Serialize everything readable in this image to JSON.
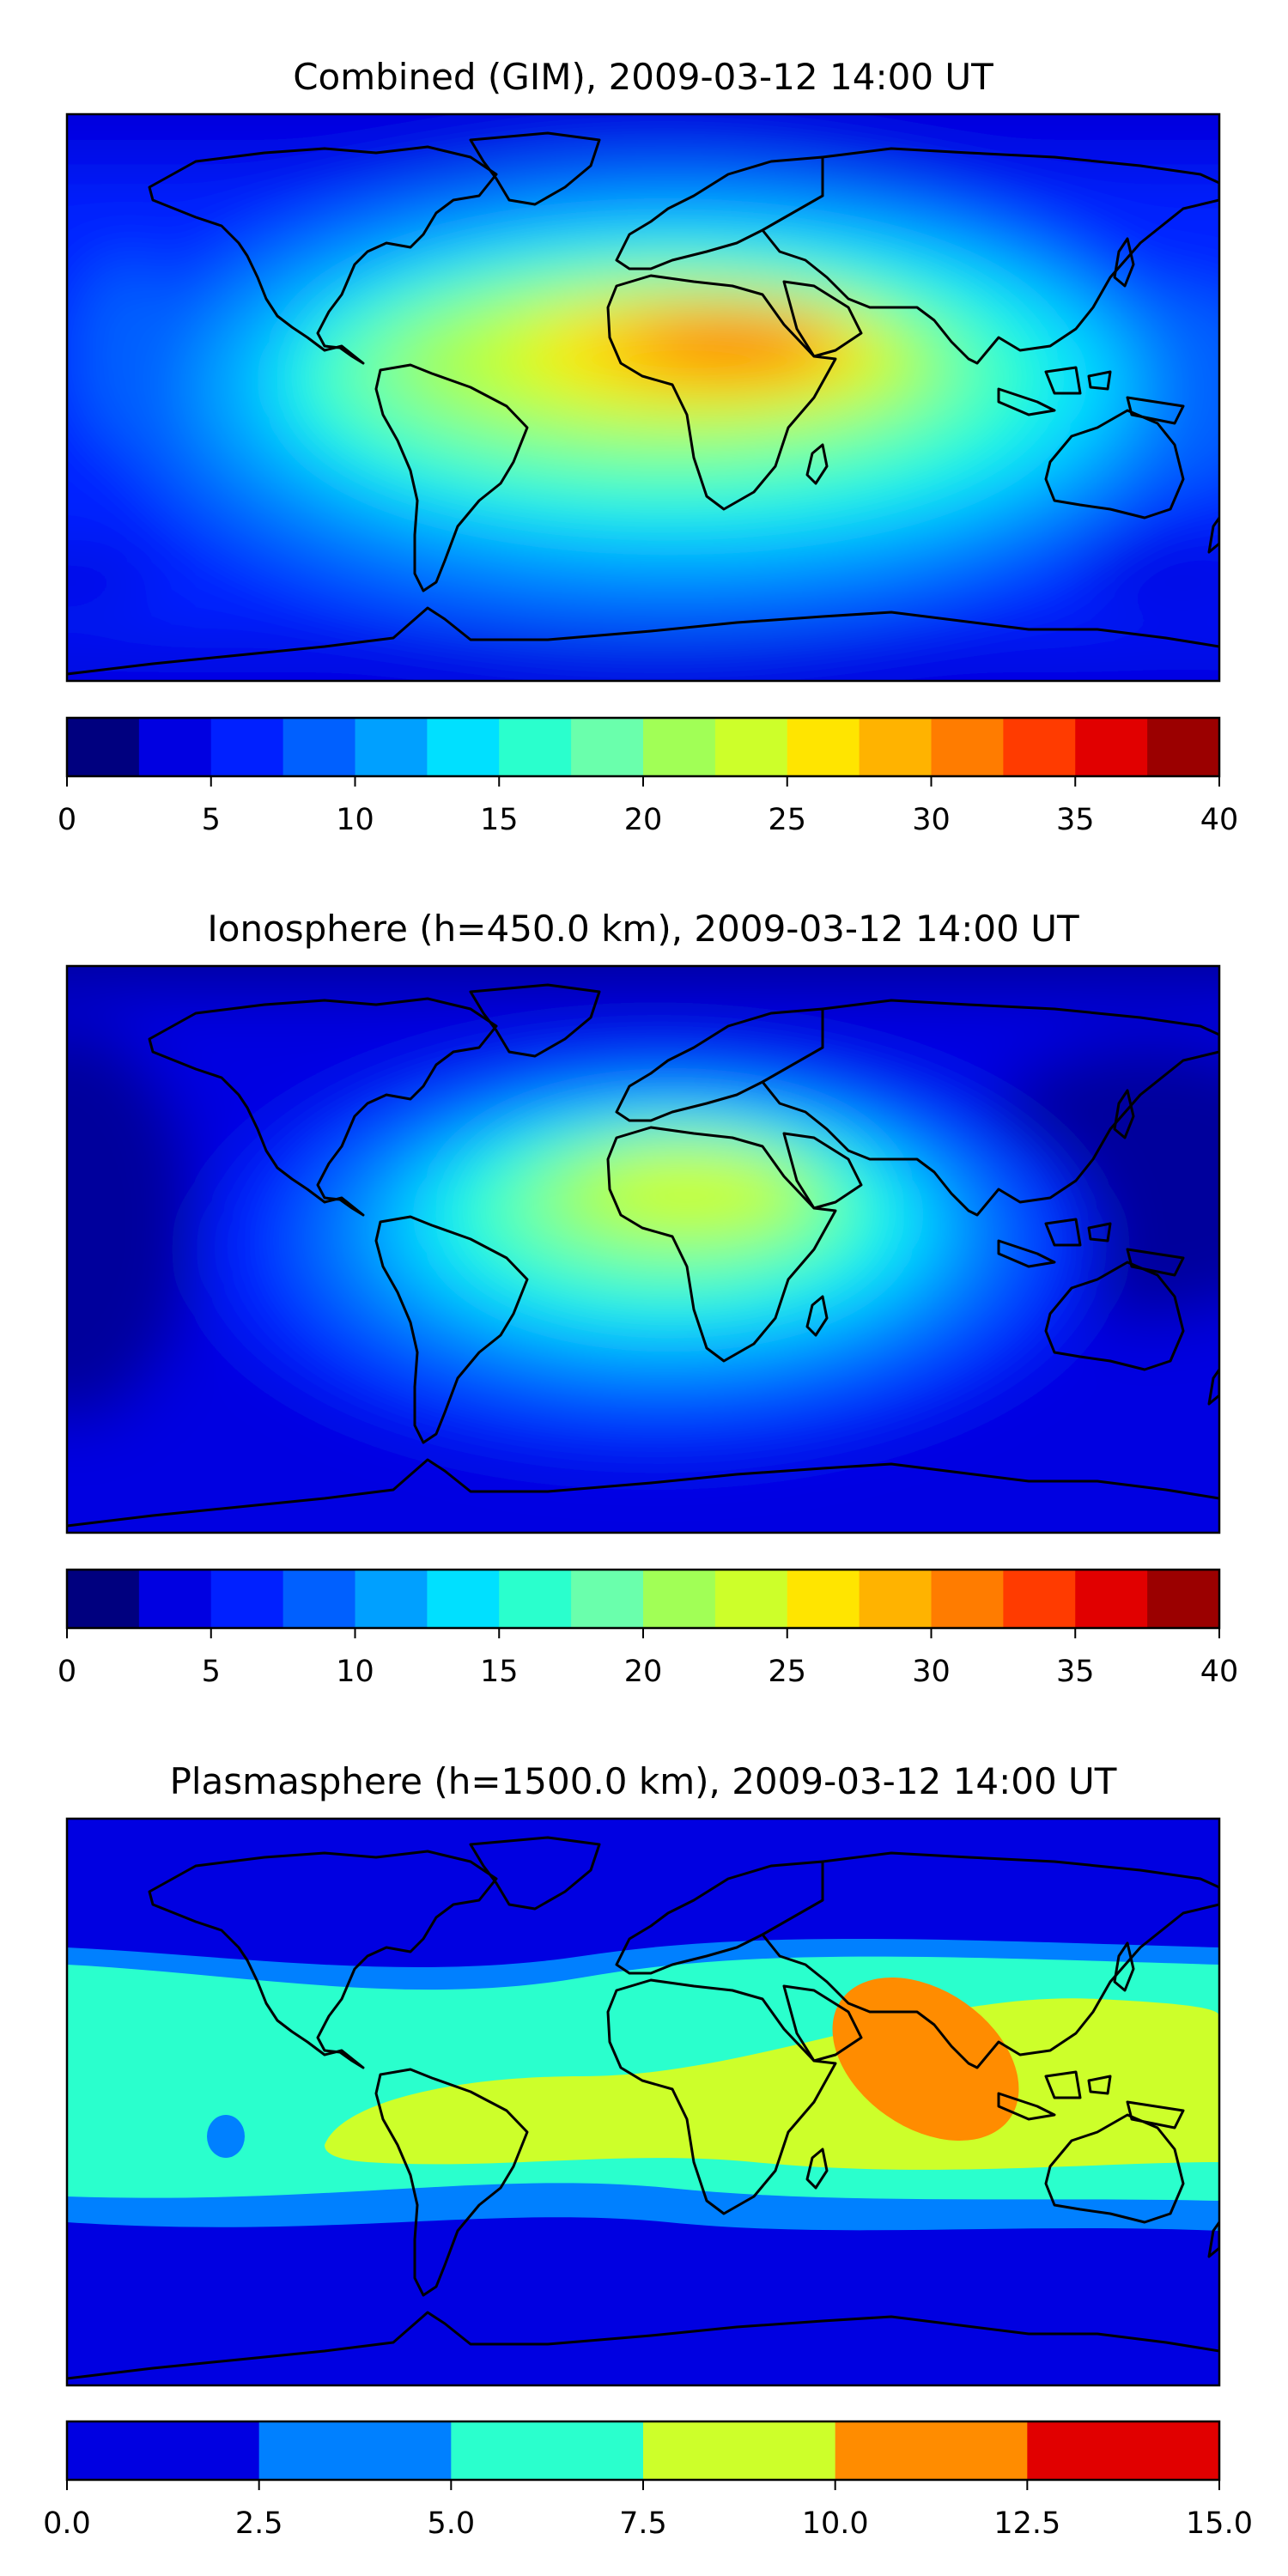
{
  "chart_data": [
    {
      "type": "heatmap",
      "title": "Combined (GIM), 2009-03-12 14:00 UT",
      "xlabel": "",
      "ylabel": "",
      "projection": "global lon/lat map with coastlines",
      "colorbar": {
        "levels": [
          0,
          2.5,
          5,
          7.5,
          10,
          12.5,
          15,
          17.5,
          20,
          22.5,
          25,
          27.5,
          30,
          32.5,
          35,
          37.5,
          40
        ],
        "ticks": [
          "0",
          "5",
          "10",
          "15",
          "20",
          "25",
          "30",
          "35",
          "40"
        ],
        "range": [
          0,
          40
        ]
      },
      "colors": [
        "#00007f",
        "#0000e1",
        "#0020ff",
        "#0060ff",
        "#00a0ff",
        "#00e0ff",
        "#2affcd",
        "#6affac",
        "#a1ff56",
        "#cdff2a",
        "#ffe500",
        "#ffb300",
        "#ff7c00",
        "#ff3b00",
        "#e10000",
        "#9b0000"
      ],
      "features": [
        {
          "name": "daytime peak over north-central Africa",
          "lon": 22,
          "lat": 6,
          "value": 31
        },
        {
          "name": "nighttime minimum over central Pacific",
          "lon": -150,
          "lat": 0,
          "value": 4
        }
      ]
    },
    {
      "type": "heatmap",
      "title": "Ionosphere  (h=450.0 km), 2009-03-12 14:00 UT",
      "xlabel": "",
      "ylabel": "",
      "projection": "global lon/lat map with coastlines",
      "colorbar": {
        "levels": [
          0,
          2.5,
          5,
          7.5,
          10,
          12.5,
          15,
          17.5,
          20,
          22.5,
          25,
          27.5,
          30,
          32.5,
          35,
          37.5,
          40
        ],
        "ticks": [
          "0",
          "5",
          "10",
          "15",
          "20",
          "25",
          "30",
          "35",
          "40"
        ],
        "range": [
          0,
          40
        ]
      },
      "colors": [
        "#00007f",
        "#0000e1",
        "#0020ff",
        "#0060ff",
        "#00a0ff",
        "#00e0ff",
        "#2affcd",
        "#6affac",
        "#a1ff56",
        "#cdff2a",
        "#ffe500",
        "#ffb300",
        "#ff7c00",
        "#ff3b00",
        "#e10000",
        "#9b0000"
      ],
      "features": [
        {
          "name": "daytime peak over central Africa",
          "lon": 15,
          "lat": 5,
          "value": 23
        },
        {
          "name": "nighttime minimum over Pacific",
          "lon": -160,
          "lat": 10,
          "value": 2
        }
      ]
    },
    {
      "type": "heatmap",
      "title": "Plasmasphere (h=1500.0 km), 2009-03-12 14:00 UT",
      "xlabel": "",
      "ylabel": "",
      "projection": "global lon/lat map with coastlines",
      "colorbar": {
        "levels": [
          0,
          2.5,
          5,
          7.5,
          10,
          12.5,
          15
        ],
        "ticks": [
          "0.0",
          "2.5",
          "5.0",
          "7.5",
          "10.0",
          "12.5",
          "15.0"
        ],
        "range": [
          0,
          15
        ]
      },
      "colors": [
        "#0000e1",
        "#0080ff",
        "#2affcd",
        "#cdff2a",
        "#ff8c00",
        "#e10000"
      ],
      "features": [
        {
          "name": "maximum over Arabian Sea / India",
          "lon": 70,
          "lat": 15,
          "value": 11
        },
        {
          "name": "equatorial band",
          "lon": 0,
          "lat": 0,
          "value": 8.5
        }
      ]
    }
  ]
}
